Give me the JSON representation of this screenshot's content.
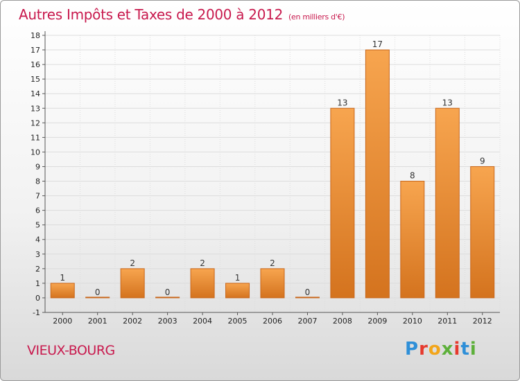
{
  "header": {
    "title": "Autres Impôts et Taxes de 2000 à 2012",
    "unit": "(en milliers d'€)"
  },
  "commune": "VIEUX-BOURG",
  "logo": {
    "letters": [
      "P",
      "r",
      "o",
      "x",
      "i",
      "t",
      "i"
    ],
    "colors": [
      "#2e8fd8",
      "#e63a2e",
      "#f2a51a",
      "#5db03a",
      "#e63a2e",
      "#2e8fd8",
      "#5db03a"
    ]
  },
  "chart_data": {
    "type": "bar",
    "title": "Autres Impôts et Taxes de 2000 à 2012",
    "xlabel": "",
    "ylabel": "",
    "categories": [
      "2000",
      "2001",
      "2002",
      "2003",
      "2004",
      "2005",
      "2006",
      "2007",
      "2008",
      "2009",
      "2010",
      "2011",
      "2012"
    ],
    "values": [
      1,
      0,
      2,
      0,
      2,
      1,
      2,
      0,
      13,
      17,
      8,
      13,
      9
    ],
    "data_labels": [
      "1",
      "0",
      "2",
      "0",
      "2",
      "1",
      "2",
      "0",
      "13",
      "17",
      "8",
      "13",
      "9"
    ],
    "ylim": [
      -1,
      18
    ],
    "yticks": [
      -1,
      0,
      1,
      2,
      3,
      4,
      5,
      6,
      7,
      8,
      9,
      10,
      11,
      12,
      13,
      14,
      15,
      16,
      17,
      18
    ],
    "grid": true,
    "legend": "none",
    "colors": {
      "bar_top": "#f7a54f",
      "bar_bottom": "#d4731e",
      "bar_stroke": "#c8661a",
      "grid": "#dcdcdc"
    }
  }
}
